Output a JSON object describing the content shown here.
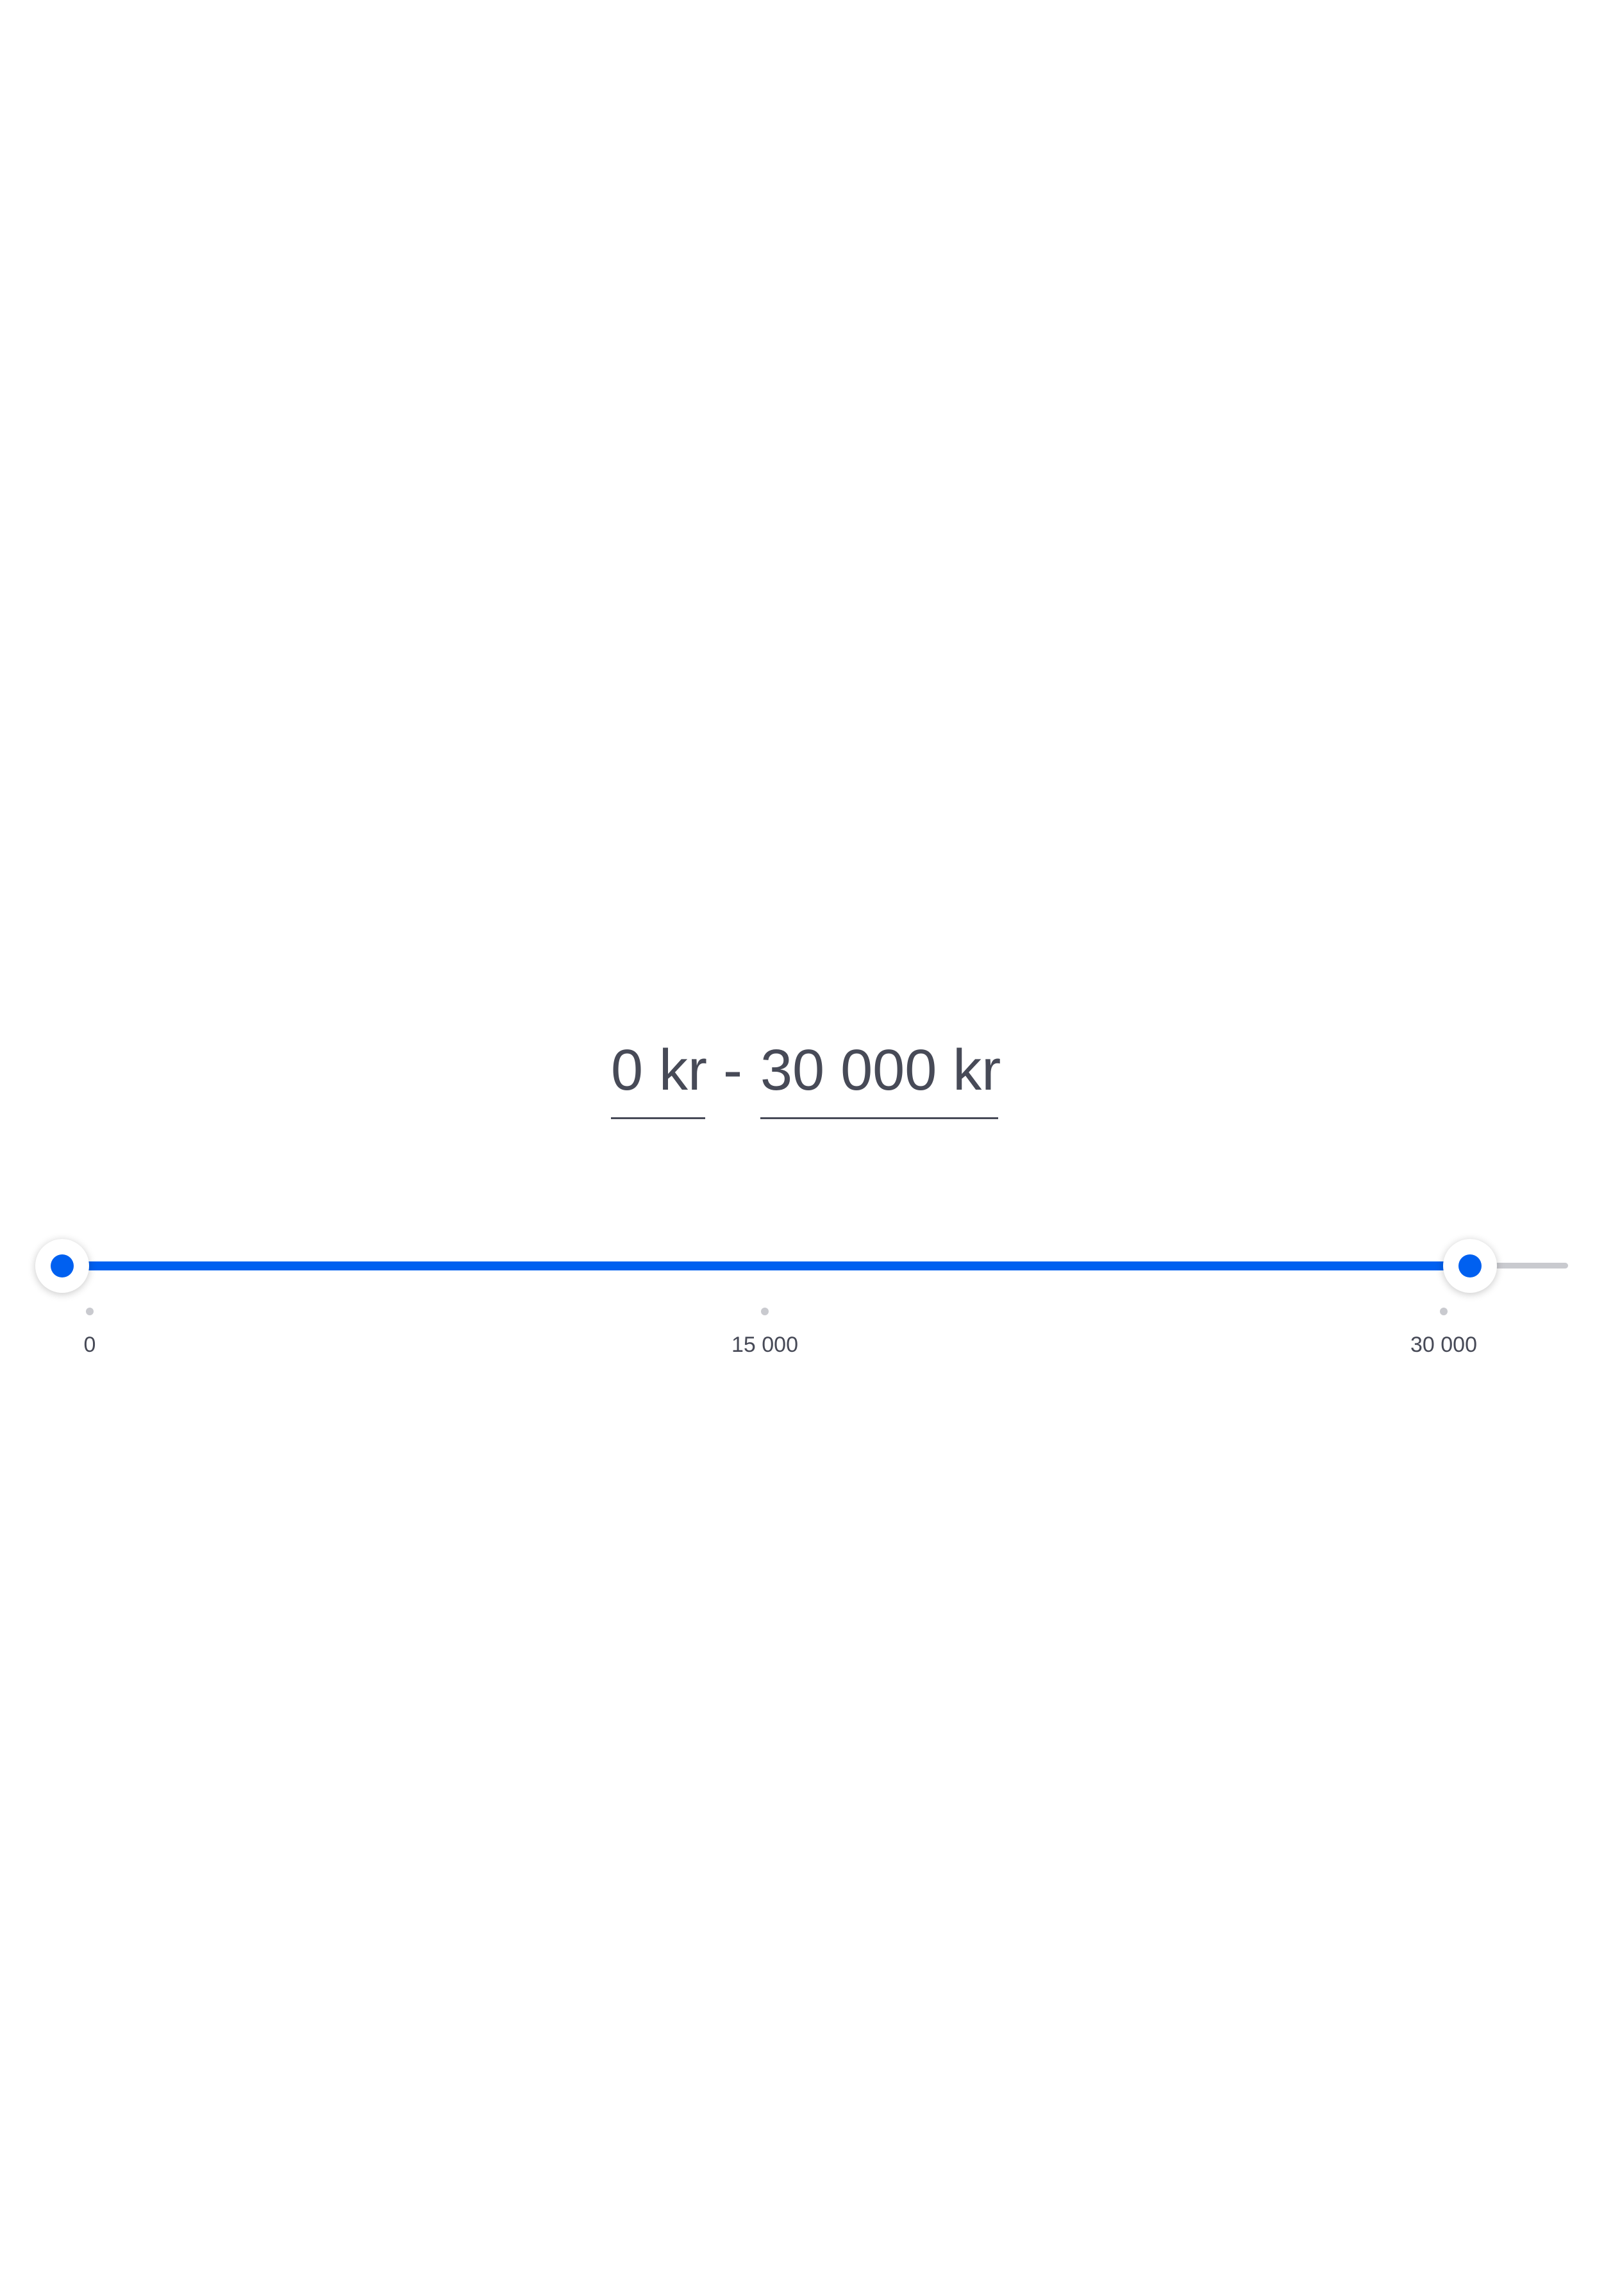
{
  "price_range": {
    "min_display": "0 kr",
    "separator": "-",
    "max_display": "30 000 kr",
    "currency": "kr",
    "min_value": 0,
    "max_value": 30000,
    "scale_min": 0,
    "scale_max": 30000,
    "ticks": [
      "0",
      "15 000",
      "30 000"
    ]
  },
  "colors": {
    "accent": "#0060f0",
    "track_inactive": "#c9cacf",
    "text": "#474a57",
    "background": "#ffffff"
  }
}
